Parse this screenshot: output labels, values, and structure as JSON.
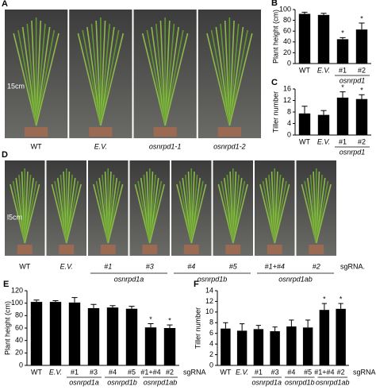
{
  "photos": [
    {
      "panel": "A",
      "labels": [
        "WT",
        "E.V.",
        "osnrpd1-1",
        "osnrpd1-2"
      ],
      "scale": "15cm"
    },
    {
      "panel": "D",
      "labels": [
        "WT",
        "E.V.",
        "#1",
        "#3",
        "#4",
        "#5",
        "#1+#4",
        "#2"
      ],
      "groups": [
        {
          "label": "osnrpd1a",
          "from": "#1",
          "to": "#3"
        },
        {
          "label": "osnrpd1b",
          "from": "#4",
          "to": "#5"
        },
        {
          "label": "osnrpd1ab",
          "from": "#1+#4",
          "to": "#2"
        }
      ],
      "axis_label": "sgRNA.",
      "scale": "l5cm"
    }
  ],
  "chart_data": [
    {
      "type": "bar",
      "panel": "B",
      "y_label": "Plant height (cm)",
      "categories": [
        "WT",
        "E.V.",
        "#1",
        "#2"
      ],
      "values": [
        92,
        90,
        45,
        63
      ],
      "errors": [
        3,
        3,
        3,
        12
      ],
      "color": "#000000",
      "ylim": [
        0,
        100
      ],
      "yticks": [
        0,
        20,
        40,
        60,
        80,
        100
      ],
      "groups": [
        {
          "label": "osnrpd1",
          "from": "#1",
          "to": "#2"
        }
      ],
      "annotations": [
        {
          "category": "#1",
          "text": "*"
        },
        {
          "category": "#2",
          "text": "*"
        }
      ]
    },
    {
      "type": "bar",
      "panel": "C",
      "y_label": "Tiller number",
      "categories": [
        "WT",
        "E.V.",
        "#1",
        "#2"
      ],
      "values": [
        7.5,
        7,
        13,
        12.5
      ],
      "errors": [
        2.5,
        1.5,
        2,
        1.5
      ],
      "color": "#000000",
      "ylim": [
        0,
        16
      ],
      "yticks": [
        0,
        4,
        8,
        12,
        16
      ],
      "groups": [
        {
          "label": "osnrpd1",
          "from": "#1",
          "to": "#2"
        }
      ],
      "annotations": [
        {
          "category": "#1",
          "text": "*"
        },
        {
          "category": "#2",
          "text": "*"
        }
      ]
    },
    {
      "type": "bar",
      "panel": "E",
      "y_label": "Plant height (cm)",
      "x_label": "sgRNA",
      "categories": [
        "WT",
        "E.V.",
        "#1",
        "#3",
        "#4",
        "#5",
        "#1+#4",
        "#2"
      ],
      "values": [
        102,
        102,
        101,
        92,
        93,
        91,
        61,
        60
      ],
      "errors": [
        3,
        2,
        8,
        6,
        3,
        4,
        6,
        5
      ],
      "color": "#000000",
      "ylim": [
        0,
        120
      ],
      "yticks": [
        0,
        20,
        40,
        60,
        80,
        100,
        120
      ],
      "groups": [
        {
          "label": "osnrpd1a",
          "from": "#1",
          "to": "#3"
        },
        {
          "label": "osnrpd1b",
          "from": "#4",
          "to": "#5"
        },
        {
          "label": "osnrpd1ab",
          "from": "#1+#4",
          "to": "#2"
        }
      ],
      "annotations": [
        {
          "category": "#1+#4",
          "text": "*"
        },
        {
          "category": "#2",
          "text": "*"
        }
      ]
    },
    {
      "type": "bar",
      "panel": "F",
      "y_label": "Tiller number",
      "x_label": "sgRNA",
      "categories": [
        "WT",
        "E.V.",
        "#1",
        "#3",
        "#4",
        "#5",
        "#1+#4",
        "#2"
      ],
      "values": [
        6.9,
        6.5,
        6.8,
        6.4,
        7.3,
        7.1,
        10.4,
        10.6
      ],
      "errors": [
        1.1,
        1.3,
        0.7,
        0.8,
        1.2,
        1.4,
        1.2,
        1.0
      ],
      "color": "#000000",
      "ylim": [
        0,
        14
      ],
      "yticks": [
        0,
        2,
        4,
        6,
        8,
        10,
        12,
        14
      ],
      "groups": [
        {
          "label": "osnrpd1a",
          "from": "#1",
          "to": "#3"
        },
        {
          "label": "osnrpd1b",
          "from": "#4",
          "to": "#5"
        },
        {
          "label": "osnrpd1ab",
          "from": "#1+#4",
          "to": "#2"
        }
      ],
      "annotations": [
        {
          "category": "#1+#4",
          "text": "*"
        },
        {
          "category": "#2",
          "text": "*"
        }
      ]
    }
  ]
}
